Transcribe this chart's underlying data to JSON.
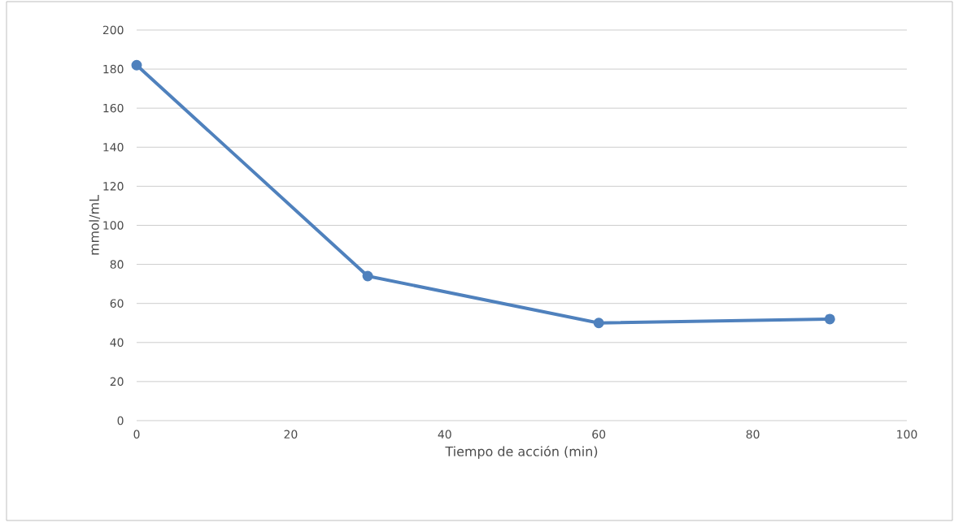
{
  "chart_data": {
    "type": "line",
    "xlabel": "Tiempo de acción (min)",
    "ylabel": "mmol/mL",
    "x": [
      0,
      30,
      60,
      90
    ],
    "series": [
      {
        "color": "#4f81bd",
        "values": [
          182,
          74,
          50,
          52
        ]
      }
    ],
    "xlim": [
      0,
      100
    ],
    "xticks": [
      0,
      20,
      40,
      60,
      80,
      100
    ],
    "ylim": [
      0,
      200
    ],
    "yticks": [
      0,
      20,
      40,
      60,
      80,
      100,
      120,
      140,
      160,
      180,
      200
    ],
    "grid": "y",
    "marker": "circle",
    "line_style": "solid"
  }
}
